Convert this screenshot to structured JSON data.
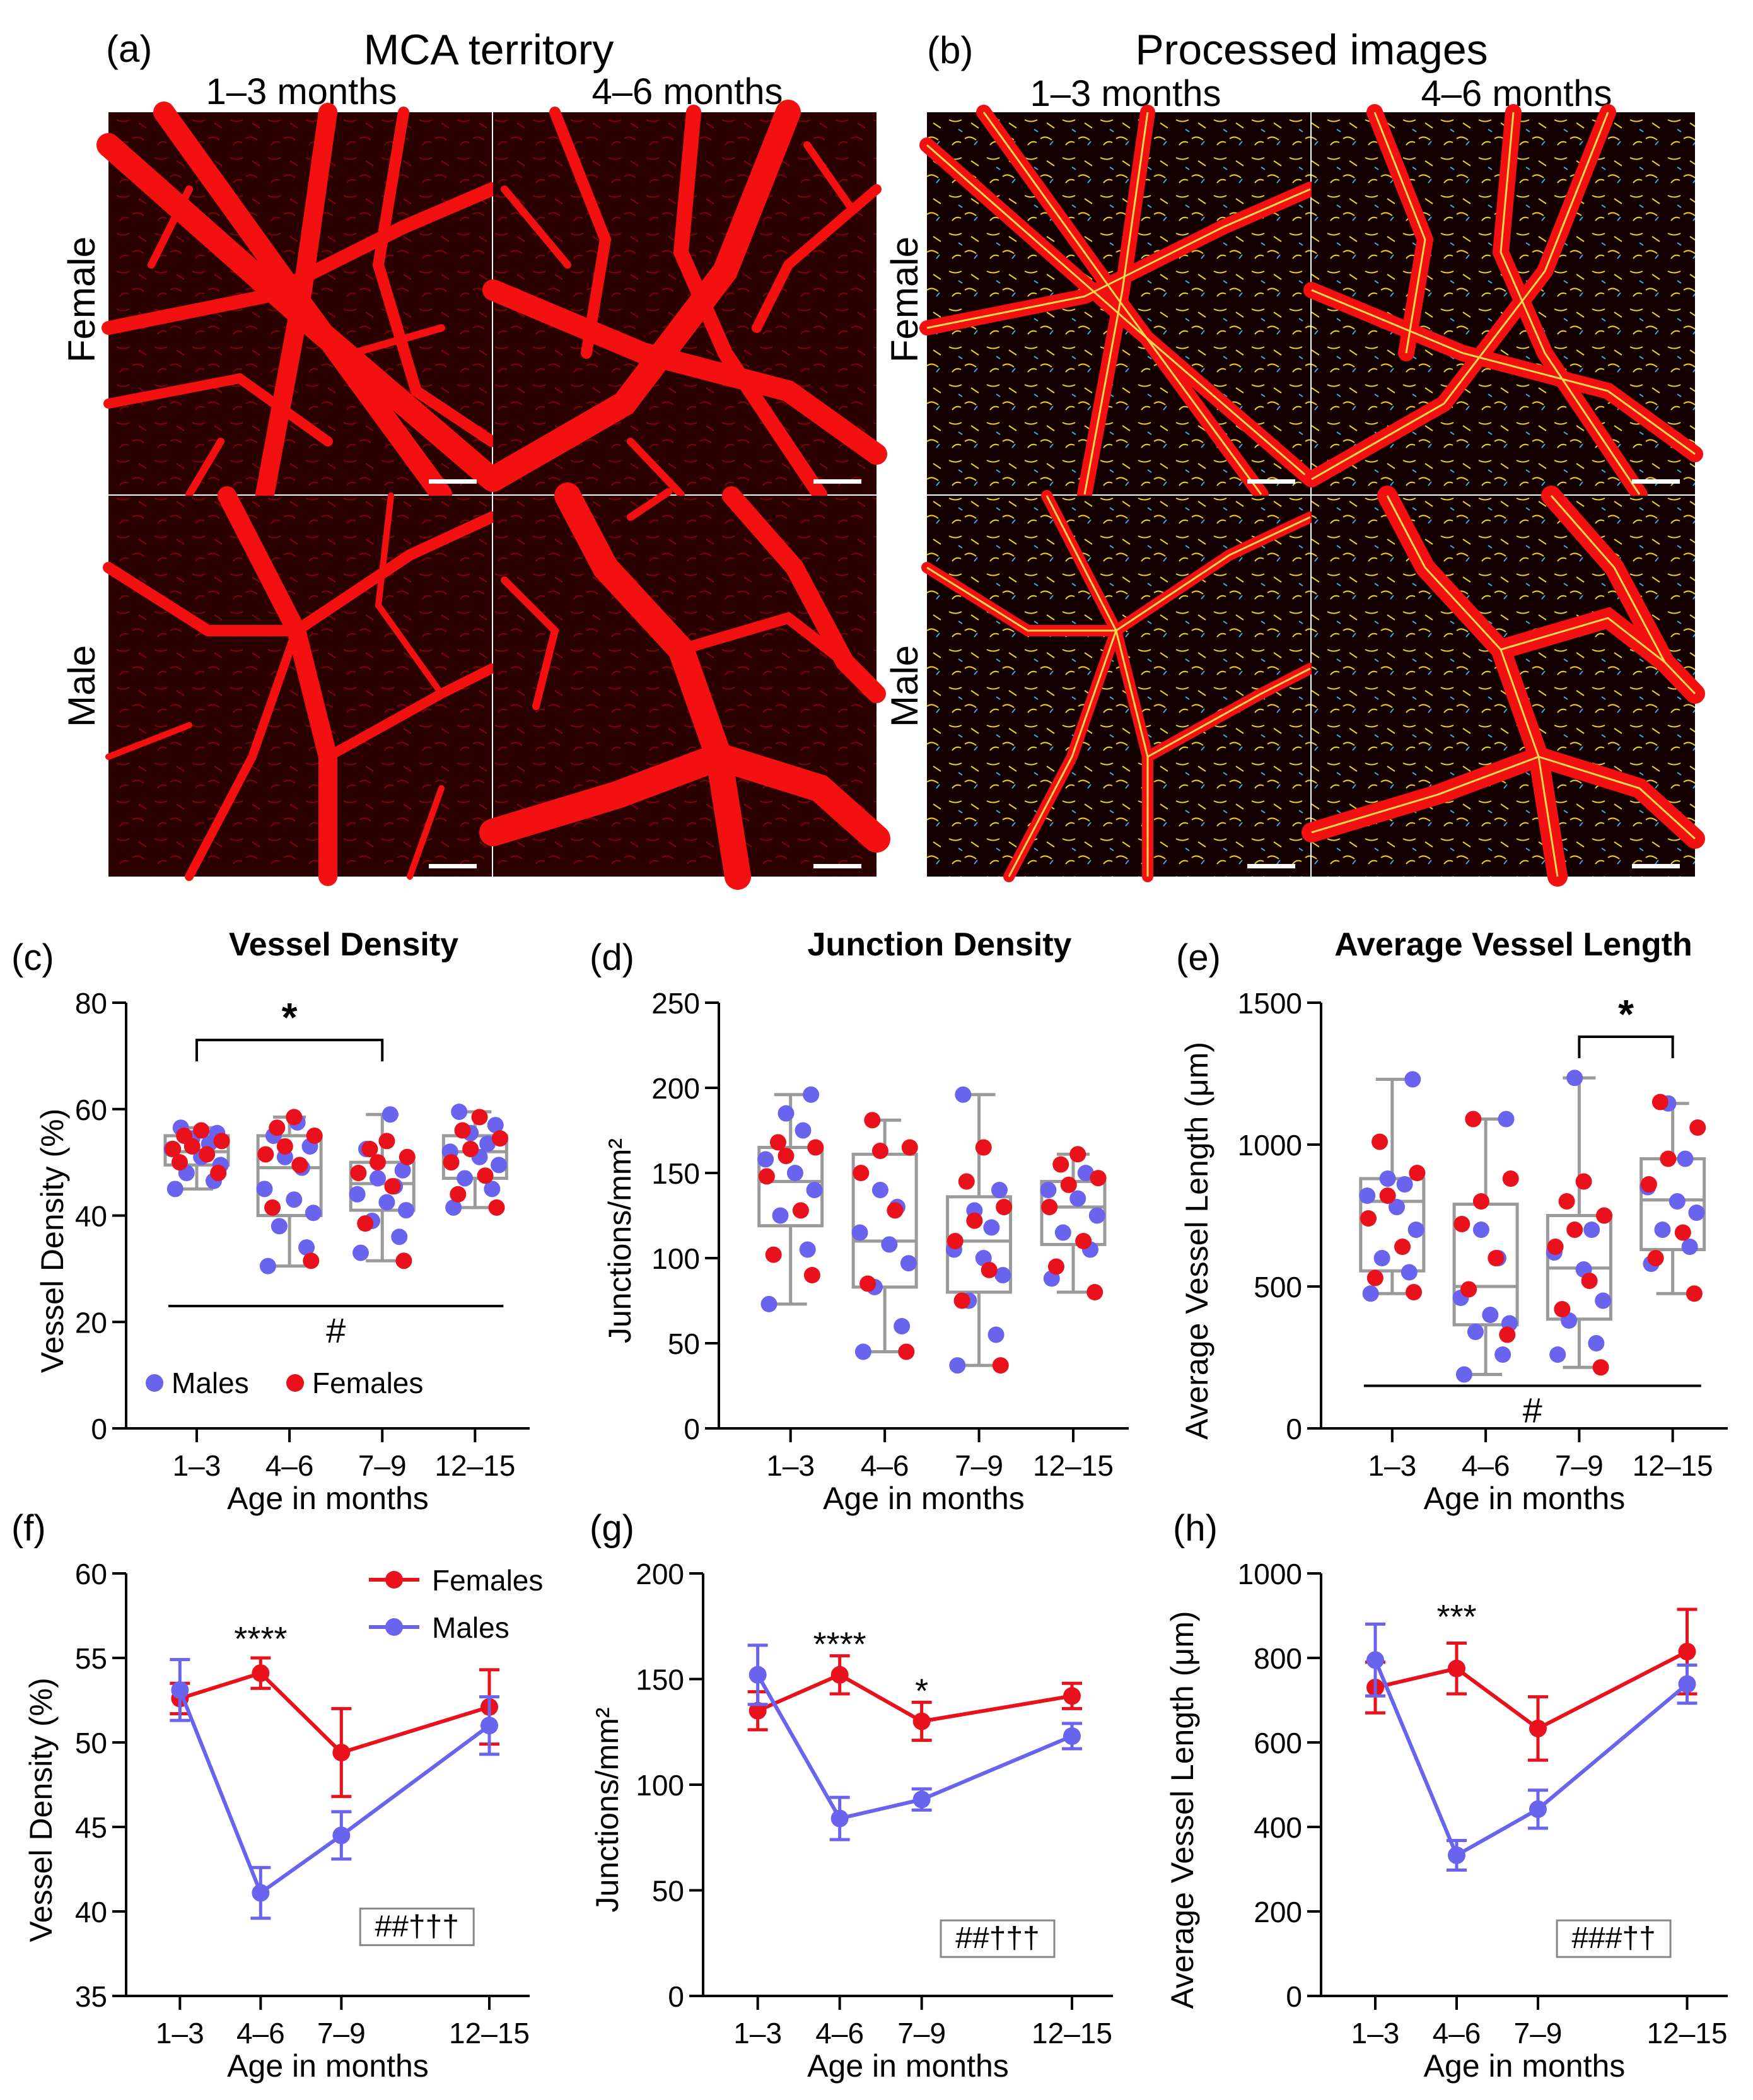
{
  "colors": {
    "male": "#6a63ee",
    "female": "#e8111c",
    "box": "#9a9a9a",
    "vessel": "#f21010",
    "tissue": "#2a0000"
  },
  "image_panels": [
    {
      "letter": "(a)",
      "title": "MCA territory",
      "columns": [
        "1–3 months",
        "4–6 months"
      ],
      "rows": [
        "Female",
        "Male"
      ]
    },
    {
      "letter": "(b)",
      "title": "Processed images",
      "columns": [
        "1–3 months",
        "4–6 months"
      ],
      "rows": [
        "Female",
        "Male"
      ]
    }
  ],
  "legend": {
    "males": "Males",
    "females": "Females"
  },
  "chart_data": [
    {
      "panel": "(c)",
      "type": "box-scatter",
      "title": "Vessel Density",
      "ylabel": "Vessel Density (%)",
      "xlabel": "Age in months",
      "categories": [
        "1–3",
        "4–6",
        "7–9",
        "12–15"
      ],
      "ylim": [
        0,
        80
      ],
      "yticks": [
        0,
        20,
        40,
        60,
        80
      ],
      "yticklabels": [
        "0",
        "20",
        "40",
        "60",
        "80"
      ],
      "boxes": [
        {
          "min": 45,
          "q1": 49.5,
          "median": 52,
          "q3": 55,
          "max": 56.5
        },
        {
          "min": 30.5,
          "q1": 40,
          "median": 49,
          "q3": 55,
          "max": 58.5
        },
        {
          "min": 31.5,
          "q1": 41,
          "median": 46,
          "q3": 50,
          "max": 59
        },
        {
          "min": 41.5,
          "q1": 47,
          "median": 52,
          "q3": 55,
          "max": 59.5
        }
      ],
      "males": [
        [
          45,
          46.5,
          48,
          49.5,
          51,
          52.5,
          53.5,
          54.5,
          55.5,
          56.5
        ],
        [
          30.5,
          34,
          38,
          40.5,
          43,
          45,
          49,
          51,
          53,
          55,
          57.5
        ],
        [
          33,
          36,
          39,
          41,
          42.5,
          44,
          45.5,
          47,
          48.5,
          52.5,
          59
        ],
        [
          41.5,
          45,
          47,
          49.5,
          51,
          52,
          53.5,
          55.5,
          57,
          59.5
        ]
      ],
      "females": [
        [
          48,
          50,
          51.5,
          52.5,
          53,
          54,
          55,
          56
        ],
        [
          31.5,
          41.5,
          49.5,
          51.5,
          53,
          55,
          56.5,
          58.5
        ],
        [
          31.5,
          38.5,
          45.5,
          48,
          50,
          51,
          52.5,
          54
        ],
        [
          41.5,
          44,
          47.5,
          50,
          52.5,
          54.5,
          56,
          58.5
        ]
      ],
      "significance": [
        {
          "from": 0,
          "to": 2,
          "level": 73,
          "label": "*"
        }
      ],
      "hash_line": {
        "y": 23,
        "label": "#"
      },
      "legend_position": "bottom-left"
    },
    {
      "panel": "(d)",
      "type": "box-scatter",
      "title": "Junction Density",
      "ylabel": "Junctions/mm²",
      "xlabel": "Age in months",
      "categories": [
        "1–3",
        "4–6",
        "7–9",
        "12–15"
      ],
      "ylim": [
        0,
        250
      ],
      "yticks": [
        0,
        50,
        100,
        150,
        200,
        250
      ],
      "yticklabels": [
        "0",
        "50",
        "100",
        "150",
        "200",
        "250"
      ],
      "boxes": [
        {
          "min": 73,
          "q1": 119,
          "median": 145,
          "q3": 165,
          "max": 196
        },
        {
          "min": 45,
          "q1": 83,
          "median": 110,
          "q3": 161,
          "max": 181
        },
        {
          "min": 37,
          "q1": 80,
          "median": 110,
          "q3": 136,
          "max": 196
        },
        {
          "min": 80,
          "q1": 108,
          "median": 130,
          "q3": 145,
          "max": 161
        }
      ],
      "males": [
        [
          73,
          105,
          125,
          140,
          150,
          158,
          175,
          185,
          196
        ],
        [
          45,
          60,
          83,
          97,
          108,
          115,
          130,
          140
        ],
        [
          37,
          55,
          75,
          90,
          100,
          105,
          118,
          128,
          140,
          196
        ],
        [
          88,
          105,
          115,
          125,
          135,
          140,
          150
        ]
      ],
      "females": [
        [
          90,
          102,
          128,
          148,
          160,
          165,
          168
        ],
        [
          45,
          85,
          128,
          150,
          163,
          165,
          181
        ],
        [
          37,
          75,
          93,
          110,
          122,
          130,
          145,
          165
        ],
        [
          80,
          95,
          110,
          130,
          143,
          147,
          155,
          161
        ]
      ],
      "legend_position": "none"
    },
    {
      "panel": "(e)",
      "type": "box-scatter",
      "title": "Average Vessel Length",
      "ylabel": "Average Vessel Length (μm)",
      "xlabel": "Age in months",
      "categories": [
        "1–3",
        "4–6",
        "7–9",
        "12–15"
      ],
      "ylim": [
        0,
        1500
      ],
      "yticks": [
        0,
        500,
        1000,
        1500
      ],
      "yticklabels": [
        "0",
        "500",
        "1000",
        "1500"
      ],
      "boxes": [
        {
          "min": 475,
          "q1": 555,
          "median": 800,
          "q3": 880,
          "max": 1230
        },
        {
          "min": 190,
          "q1": 365,
          "median": 500,
          "q3": 790,
          "max": 1090
        },
        {
          "min": 215,
          "q1": 385,
          "median": 565,
          "q3": 750,
          "max": 1235
        },
        {
          "min": 475,
          "q1": 630,
          "median": 805,
          "q3": 950,
          "max": 1145
        }
      ],
      "males": [
        [
          475,
          550,
          600,
          700,
          780,
          820,
          860,
          880,
          1230
        ],
        [
          190,
          260,
          340,
          370,
          400,
          460,
          600,
          700,
          1090
        ],
        [
          260,
          300,
          380,
          450,
          560,
          620,
          700,
          1235
        ],
        [
          580,
          640,
          700,
          760,
          800,
          850,
          950,
          1145
        ]
      ],
      "females": [
        [
          480,
          530,
          640,
          740,
          820,
          900,
          1010
        ],
        [
          330,
          490,
          600,
          720,
          800,
          880,
          1090
        ],
        [
          215,
          420,
          520,
          640,
          700,
          750,
          800,
          870
        ],
        [
          475,
          600,
          690,
          860,
          950,
          1060,
          1150
        ]
      ],
      "significance": [
        {
          "from": 2,
          "to": 3,
          "level": 1380,
          "label": "*"
        }
      ],
      "hash_line": {
        "y": 150,
        "label": "#"
      },
      "legend_position": "none"
    },
    {
      "panel": "(f)",
      "type": "line",
      "ylabel": "Vessel Density (%)",
      "xlabel": "Age in months",
      "x": [
        2,
        5,
        8,
        13.5
      ],
      "xticklabels": [
        "1–3",
        "4–6",
        "7–9",
        "12–15"
      ],
      "xlim": [
        0,
        15
      ],
      "ylim": [
        35,
        60
      ],
      "yticks": [
        35,
        40,
        45,
        50,
        55,
        60
      ],
      "yticklabels": [
        "35",
        "40",
        "45",
        "50",
        "55",
        "60"
      ],
      "series": [
        {
          "name": "Females",
          "values": [
            52.6,
            54.1,
            49.4,
            52.1
          ],
          "errors": [
            0.9,
            0.9,
            2.6,
            2.2
          ]
        },
        {
          "name": "Males",
          "values": [
            53.1,
            41.1,
            44.5,
            51.0
          ],
          "errors": [
            1.8,
            1.5,
            1.4,
            1.7
          ]
        }
      ],
      "annotations": [
        {
          "x": 5,
          "y": 56.2,
          "label": "****"
        }
      ],
      "stat_box": "##†††",
      "stat_box_anchor": {
        "x": 8.7,
        "y": 39.2
      },
      "legend_position": "top-right"
    },
    {
      "panel": "(g)",
      "type": "line",
      "ylabel": "Junctions/mm²",
      "xlabel": "Age in months",
      "x": [
        2,
        5,
        8,
        13.5
      ],
      "xticklabels": [
        "1–3",
        "4–6",
        "7–9",
        "12–15"
      ],
      "xlim": [
        0,
        15
      ],
      "ylim": [
        0,
        200
      ],
      "yticks": [
        0,
        50,
        100,
        150,
        200
      ],
      "yticklabels": [
        "0",
        "50",
        "100",
        "150",
        "200"
      ],
      "series": [
        {
          "name": "Females",
          "values": [
            135,
            152,
            130,
            142
          ],
          "errors": [
            9,
            9,
            9,
            6
          ]
        },
        {
          "name": "Males",
          "values": [
            152,
            84,
            93,
            123
          ],
          "errors": [
            14,
            10,
            5,
            6
          ]
        }
      ],
      "annotations": [
        {
          "x": 5,
          "y": 167,
          "label": "****"
        },
        {
          "x": 8,
          "y": 145,
          "label": "*"
        }
      ],
      "stat_box": "##†††",
      "stat_box_anchor": {
        "x": 8.7,
        "y": 28
      },
      "legend_position": "none"
    },
    {
      "panel": "(h)",
      "type": "line",
      "ylabel": "Average Vessel Length (μm)",
      "xlabel": "Age in months",
      "x": [
        2,
        5,
        8,
        13.5
      ],
      "xticklabels": [
        "1–3",
        "4–6",
        "7–9",
        "12–15"
      ],
      "xlim": [
        0,
        15
      ],
      "ylim": [
        0,
        1000
      ],
      "yticks": [
        0,
        200,
        400,
        600,
        800,
        1000
      ],
      "yticklabels": [
        "0",
        "200",
        "400",
        "600",
        "800",
        "1000"
      ],
      "series": [
        {
          "name": "Females",
          "values": [
            730,
            775,
            633,
            815
          ],
          "errors": [
            60,
            60,
            75,
            100
          ]
        },
        {
          "name": "Males",
          "values": [
            795,
            333,
            442,
            738
          ],
          "errors": [
            85,
            35,
            45,
            45
          ]
        }
      ],
      "annotations": [
        {
          "x": 5,
          "y": 900,
          "label": "***"
        }
      ],
      "stat_box": "###††",
      "stat_box_anchor": {
        "x": 8.7,
        "y": 140
      },
      "legend_position": "none"
    }
  ]
}
